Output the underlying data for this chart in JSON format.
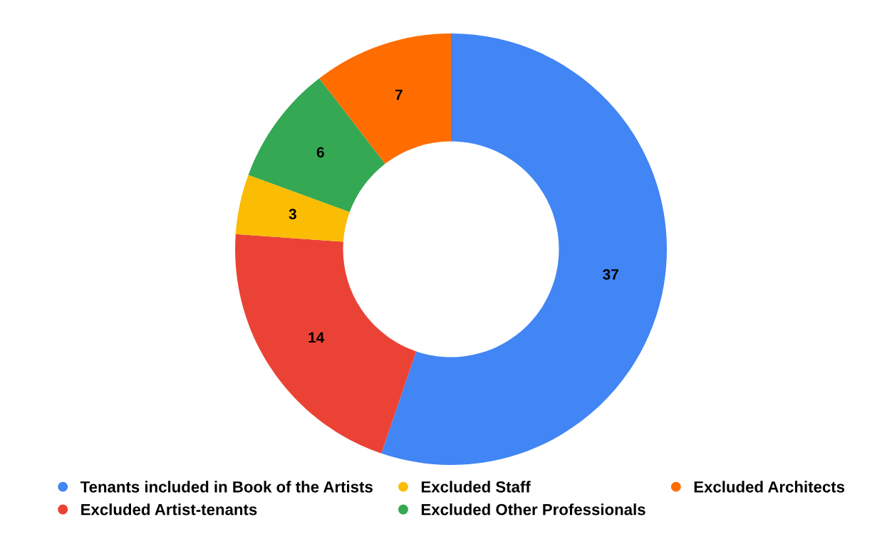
{
  "chart_data": {
    "type": "donut",
    "categories": [
      "Tenants included in Book of the Artists",
      "Excluded Artist-tenants",
      "Excluded Staff",
      "Excluded Other Professionals",
      "Excluded Architects"
    ],
    "values": [
      37,
      14,
      3,
      6,
      7
    ],
    "colors": [
      "#4285f4",
      "#ea4335",
      "#fbbc04",
      "#34a853",
      "#ff6d01"
    ],
    "data_labels": true,
    "legend": "bottom"
  }
}
